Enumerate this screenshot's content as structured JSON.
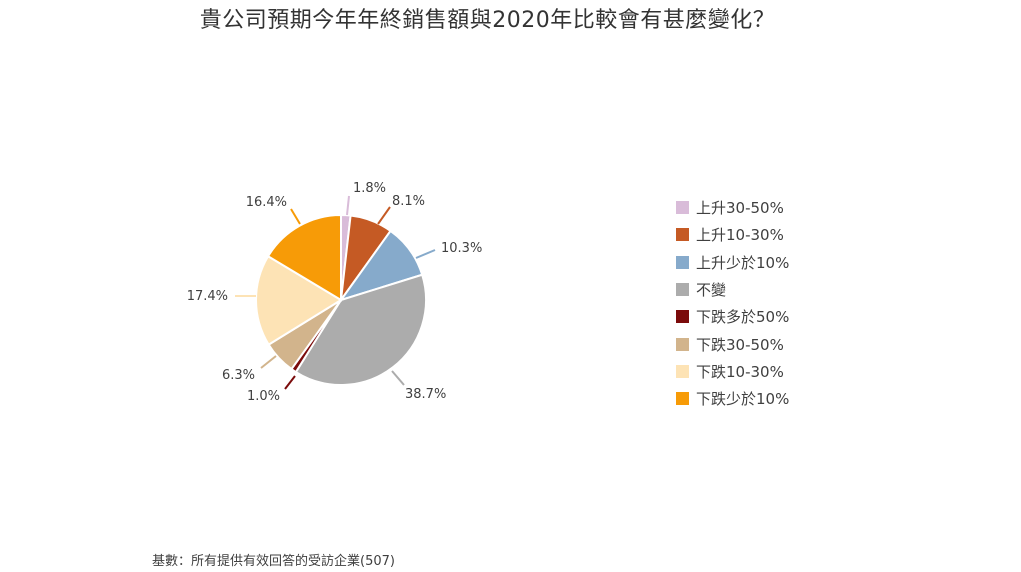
{
  "chart_data": {
    "type": "pie",
    "title": "貴公司預期今年年終銷售額與2020年比較會有甚麼變化？",
    "categories": [
      "上升30-50%",
      "上升10-30%",
      "上升少於10%",
      "不變",
      "下跌多於50%",
      "下跌30-50%",
      "下跌10-30%",
      "下跌少於10%"
    ],
    "values": [
      1.8,
      8.1,
      10.3,
      38.7,
      1.0,
      6.3,
      17.4,
      16.4
    ],
    "value_labels": [
      "1.8%",
      "8.1%",
      "10.3%",
      "38.7%",
      "1.0%",
      "6.3%",
      "17.4%",
      "16.4%"
    ],
    "colors": [
      "#d9bcd9",
      "#c55a24",
      "#86aacb",
      "#acacac",
      "#7b0b0b",
      "#d2b48c",
      "#fde3b5",
      "#f79b07"
    ],
    "legend_position": "right",
    "start": "top",
    "direction": "clockwise"
  },
  "footnote": "基數：所有提供有效回答的受訪企業(507)"
}
